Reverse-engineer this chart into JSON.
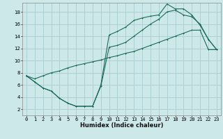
{
  "title": "",
  "xlabel": "Humidex (Indice chaleur)",
  "bg_color": "#cce8e8",
  "grid_color": "#aacccc",
  "line_color": "#1a6b5a",
  "xlim": [
    -0.5,
    23.5
  ],
  "ylim": [
    1.0,
    19.5
  ],
  "xticks": [
    0,
    1,
    2,
    3,
    4,
    5,
    6,
    7,
    8,
    9,
    10,
    11,
    12,
    13,
    14,
    15,
    16,
    17,
    18,
    19,
    20,
    21,
    22,
    23
  ],
  "yticks": [
    2,
    4,
    6,
    8,
    10,
    12,
    14,
    16,
    18
  ],
  "line1_x": [
    0,
    1,
    2,
    3,
    4,
    5,
    6,
    7,
    8,
    9,
    10,
    11,
    12,
    13,
    14,
    15,
    16,
    17,
    18,
    19,
    20,
    21,
    22,
    23
  ],
  "line1_y": [
    7.5,
    6.5,
    5.5,
    5.0,
    3.8,
    3.0,
    2.5,
    2.5,
    2.5,
    6.0,
    14.2,
    14.8,
    15.5,
    16.6,
    17.0,
    17.3,
    17.5,
    19.3,
    18.5,
    18.5,
    17.5,
    15.8,
    13.5,
    11.8
  ],
  "line2_x": [
    0,
    1,
    2,
    3,
    4,
    5,
    6,
    7,
    8,
    9,
    10,
    11,
    12,
    13,
    14,
    15,
    16,
    17,
    18,
    19,
    20,
    21,
    22,
    23
  ],
  "line2_y": [
    7.5,
    6.5,
    5.5,
    5.0,
    3.8,
    3.0,
    2.5,
    2.5,
    2.5,
    5.8,
    12.2,
    12.5,
    13.0,
    14.0,
    15.0,
    16.0,
    16.8,
    18.0,
    18.3,
    17.5,
    17.2,
    16.0,
    13.5,
    11.8
  ],
  "line3_x": [
    0,
    1,
    2,
    3,
    4,
    5,
    6,
    7,
    8,
    9,
    10,
    11,
    12,
    13,
    14,
    15,
    16,
    17,
    18,
    19,
    20,
    21,
    22,
    23
  ],
  "line3_y": [
    7.5,
    7.0,
    7.5,
    8.0,
    8.3,
    8.8,
    9.2,
    9.5,
    9.8,
    10.1,
    10.5,
    10.8,
    11.2,
    11.5,
    12.0,
    12.5,
    13.0,
    13.5,
    14.0,
    14.5,
    15.0,
    15.0,
    11.8,
    11.8
  ],
  "tick_fontsize": 5,
  "xlabel_fontsize": 6,
  "lw": 0.8,
  "ms": 2.0
}
